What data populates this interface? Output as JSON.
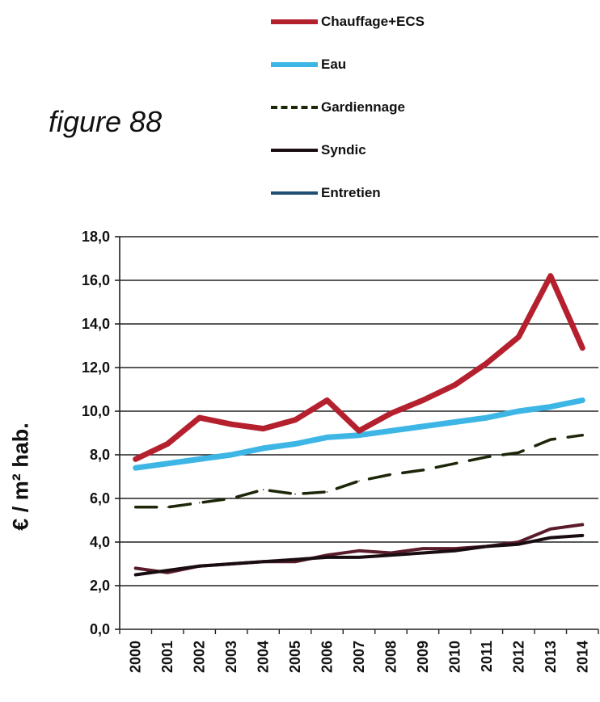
{
  "figure_label": "figure 88",
  "chart_data": {
    "type": "line",
    "title": "",
    "xlabel": "",
    "ylabel": "€ / m² hab.",
    "x": [
      "2000",
      "2001",
      "2002",
      "2003",
      "2004",
      "2005",
      "2006",
      "2007",
      "2008",
      "2009",
      "2010",
      "2011",
      "2012",
      "2013",
      "2014"
    ],
    "ylim": [
      0,
      18
    ],
    "yticks": [
      "0,0",
      "2,0",
      "4,0",
      "6,0",
      "8,0",
      "10,0",
      "12,0",
      "14,0",
      "16,0",
      "18,0"
    ],
    "grid": true,
    "legend_position": "top",
    "series": [
      {
        "name": "Chauffage+ECS",
        "color": "#b5202e",
        "style": "solid",
        "values": [
          7.8,
          8.5,
          9.7,
          9.4,
          9.2,
          9.6,
          10.5,
          9.1,
          9.9,
          10.5,
          11.2,
          12.2,
          13.4,
          16.2,
          12.9
        ]
      },
      {
        "name": "Eau",
        "color": "#3db6e6",
        "style": "solid",
        "values": [
          7.4,
          7.6,
          7.8,
          8.0,
          8.3,
          8.5,
          8.8,
          8.9,
          9.1,
          9.3,
          9.5,
          9.7,
          10.0,
          10.2,
          10.5
        ]
      },
      {
        "name": "Gardiennage",
        "color": "#1c2608",
        "style": "dashed",
        "values": [
          5.6,
          5.6,
          5.8,
          6.0,
          6.4,
          6.2,
          6.3,
          6.8,
          7.1,
          7.3,
          7.6,
          7.9,
          8.1,
          8.7,
          8.9
        ]
      },
      {
        "name": "Syndic",
        "color": "#1a0d12",
        "style": "solid",
        "values": [
          2.5,
          2.7,
          2.9,
          3.0,
          3.1,
          3.2,
          3.3,
          3.3,
          3.4,
          3.5,
          3.6,
          3.8,
          3.9,
          4.2,
          4.3
        ]
      },
      {
        "name": "Entretien",
        "color": "#5a1b2a",
        "style": "solid",
        "values": [
          2.8,
          2.6,
          2.9,
          3.0,
          3.1,
          3.1,
          3.4,
          3.6,
          3.5,
          3.7,
          3.7,
          3.8,
          4.0,
          4.6,
          4.8
        ]
      }
    ]
  }
}
